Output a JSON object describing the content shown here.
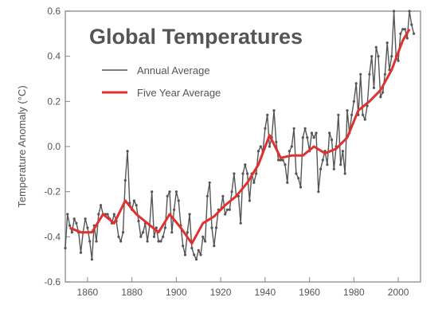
{
  "chart_data": {
    "type": "line",
    "title": "Global Temperatures",
    "xlabel": "",
    "ylabel": "Temperature Anomaly (°C)",
    "xlim": [
      1850,
      2010
    ],
    "ylim": [
      -0.6,
      0.6
    ],
    "x_ticks": [
      1860,
      1880,
      1900,
      1920,
      1940,
      1960,
      1980,
      2000
    ],
    "y_ticks": [
      0.6,
      0.4,
      0.2,
      0.0,
      -0.2,
      -0.4,
      -0.6
    ],
    "legend_position": "top-left",
    "grid": false,
    "series": [
      {
        "name": "Annual Average",
        "color": "#555555",
        "x": [
          1850,
          1851,
          1852,
          1853,
          1854,
          1855,
          1856,
          1857,
          1858,
          1859,
          1860,
          1861,
          1862,
          1863,
          1864,
          1865,
          1866,
          1867,
          1868,
          1869,
          1870,
          1871,
          1872,
          1873,
          1874,
          1875,
          1876,
          1877,
          1878,
          1879,
          1880,
          1881,
          1882,
          1883,
          1884,
          1885,
          1886,
          1887,
          1888,
          1889,
          1890,
          1891,
          1892,
          1893,
          1894,
          1895,
          1896,
          1897,
          1898,
          1899,
          1900,
          1901,
          1902,
          1903,
          1904,
          1905,
          1906,
          1907,
          1908,
          1909,
          1910,
          1911,
          1912,
          1913,
          1914,
          1915,
          1916,
          1917,
          1918,
          1919,
          1920,
          1921,
          1922,
          1923,
          1924,
          1925,
          1926,
          1927,
          1928,
          1929,
          1930,
          1931,
          1932,
          1933,
          1934,
          1935,
          1936,
          1937,
          1938,
          1939,
          1940,
          1941,
          1942,
          1943,
          1944,
          1945,
          1946,
          1947,
          1948,
          1949,
          1950,
          1951,
          1952,
          1953,
          1954,
          1955,
          1956,
          1957,
          1958,
          1959,
          1960,
          1961,
          1962,
          1963,
          1964,
          1965,
          1966,
          1967,
          1968,
          1969,
          1970,
          1971,
          1972,
          1973,
          1974,
          1975,
          1976,
          1977,
          1978,
          1979,
          1980,
          1981,
          1982,
          1983,
          1984,
          1985,
          1986,
          1987,
          1988,
          1989,
          1990,
          1991,
          1992,
          1993,
          1994,
          1995,
          1996,
          1997,
          1998,
          1999,
          2000,
          2001,
          2002,
          2003,
          2004,
          2005,
          2006,
          2007
        ],
        "y": [
          -0.45,
          -0.3,
          -0.35,
          -0.38,
          -0.32,
          -0.34,
          -0.38,
          -0.47,
          -0.38,
          -0.32,
          -0.36,
          -0.42,
          -0.5,
          -0.35,
          -0.42,
          -0.3,
          -0.26,
          -0.3,
          -0.3,
          -0.3,
          -0.32,
          -0.34,
          -0.3,
          -0.33,
          -0.4,
          -0.42,
          -0.38,
          -0.15,
          -0.02,
          -0.25,
          -0.28,
          -0.24,
          -0.26,
          -0.33,
          -0.4,
          -0.38,
          -0.34,
          -0.42,
          -0.35,
          -0.2,
          -0.4,
          -0.36,
          -0.42,
          -0.42,
          -0.4,
          -0.36,
          -0.22,
          -0.2,
          -0.38,
          -0.28,
          -0.2,
          -0.24,
          -0.35,
          -0.44,
          -0.48,
          -0.38,
          -0.3,
          -0.45,
          -0.48,
          -0.5,
          -0.46,
          -0.48,
          -0.4,
          -0.42,
          -0.22,
          -0.16,
          -0.36,
          -0.44,
          -0.36,
          -0.28,
          -0.28,
          -0.22,
          -0.3,
          -0.28,
          -0.28,
          -0.2,
          -0.12,
          -0.22,
          -0.22,
          -0.34,
          -0.12,
          -0.08,
          -0.12,
          -0.24,
          -0.12,
          -0.16,
          -0.12,
          -0.02,
          0.0,
          -0.02,
          0.08,
          0.14,
          0.0,
          0.04,
          0.16,
          0.02,
          -0.06,
          -0.06,
          -0.06,
          -0.08,
          -0.16,
          -0.02,
          0.0,
          0.08,
          -0.12,
          -0.14,
          -0.18,
          0.04,
          0.08,
          0.04,
          -0.02,
          0.06,
          0.04,
          0.06,
          -0.2,
          -0.1,
          -0.06,
          -0.02,
          -0.08,
          0.06,
          0.03,
          -0.1,
          0.0,
          0.14,
          -0.08,
          -0.02,
          -0.12,
          0.16,
          0.06,
          0.14,
          0.2,
          0.28,
          0.14,
          0.32,
          0.14,
          0.12,
          0.18,
          0.32,
          0.4,
          0.26,
          0.44,
          0.4,
          0.22,
          0.24,
          0.32,
          0.46,
          0.34,
          0.4,
          0.6,
          0.4,
          0.38,
          0.5,
          0.52,
          0.52,
          0.48,
          0.6,
          0.54,
          0.5
        ]
      },
      {
        "name": "Five Year Average",
        "color": "#e03030",
        "x": [
          1852,
          1857,
          1862,
          1867,
          1872,
          1877,
          1882,
          1887,
          1892,
          1897,
          1902,
          1907,
          1912,
          1917,
          1922,
          1927,
          1932,
          1937,
          1942,
          1947,
          1952,
          1957,
          1962,
          1967,
          1972,
          1977,
          1982,
          1987,
          1992,
          1997,
          2002,
          2005
        ],
        "y": [
          -0.36,
          -0.38,
          -0.38,
          -0.3,
          -0.34,
          -0.24,
          -0.3,
          -0.34,
          -0.38,
          -0.3,
          -0.36,
          -0.43,
          -0.34,
          -0.31,
          -0.26,
          -0.22,
          -0.16,
          -0.08,
          0.05,
          -0.05,
          -0.04,
          -0.04,
          0.0,
          -0.03,
          -0.01,
          0.04,
          0.16,
          0.2,
          0.25,
          0.34,
          0.47,
          0.52
        ]
      }
    ]
  }
}
